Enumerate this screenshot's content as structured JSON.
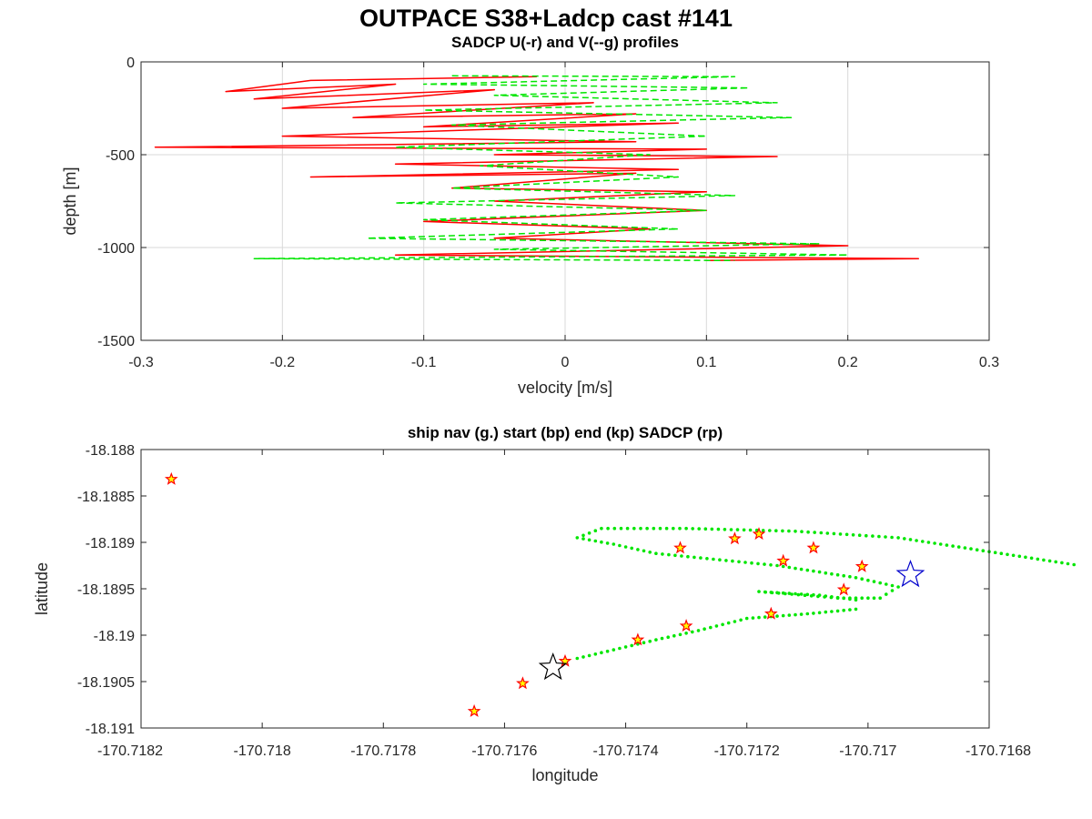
{
  "figure": {
    "title": "OUTPACE S38+Ladcp cast #141",
    "colors": {
      "u": "#ff0000",
      "v": "#00e600",
      "nav": "#00e600",
      "sadcp_fill": "#ffff00",
      "sadcp_edge": "#ff0000",
      "start": "#0000cc",
      "end": "#000000"
    }
  },
  "chart_data": [
    {
      "type": "line",
      "title": "SADCP U(-r) and V(--g) profiles",
      "xlabel": "velocity [m/s]",
      "ylabel": "depth [m]",
      "xlim": [
        -0.3,
        0.3
      ],
      "ylim": [
        -1500,
        0
      ],
      "xticks": [
        -0.3,
        -0.2,
        -0.1,
        0,
        0.1,
        0.2,
        0.3
      ],
      "xtick_labels": [
        "-0.3",
        "-0.2",
        "-0.1",
        "0",
        "0.1",
        "0.2",
        "0.3"
      ],
      "yticks": [
        -1500,
        -1000,
        -500,
        0
      ],
      "ytick_labels": [
        "-1500",
        "-1000",
        "-500",
        "0"
      ],
      "grid": true,
      "series": [
        {
          "key": "u",
          "style": "solid",
          "points": [
            [
              -0.02,
              -80
            ],
            [
              -0.18,
              -100
            ],
            [
              -0.24,
              -160
            ],
            [
              -0.12,
              -120
            ],
            [
              -0.22,
              -200
            ],
            [
              -0.05,
              -150
            ],
            [
              -0.2,
              -250
            ],
            [
              0.02,
              -220
            ],
            [
              -0.15,
              -300
            ],
            [
              0.05,
              -280
            ],
            [
              -0.1,
              -350
            ],
            [
              0.08,
              -330
            ],
            [
              -0.2,
              -400
            ],
            [
              0.05,
              -430
            ],
            [
              -0.29,
              -460
            ],
            [
              0.1,
              -470
            ],
            [
              -0.05,
              -500
            ],
            [
              0.15,
              -510
            ],
            [
              -0.12,
              -550
            ],
            [
              0.08,
              -580
            ],
            [
              -0.18,
              -620
            ],
            [
              0.05,
              -600
            ],
            [
              -0.08,
              -680
            ],
            [
              0.1,
              -700
            ],
            [
              -0.05,
              -750
            ],
            [
              0.1,
              -800
            ],
            [
              -0.1,
              -860
            ],
            [
              0.06,
              -900
            ],
            [
              -0.05,
              -950
            ],
            [
              0.2,
              -990
            ],
            [
              -0.12,
              -1040
            ],
            [
              0.25,
              -1060
            ],
            [
              0.1,
              -1070
            ]
          ]
        },
        {
          "key": "v",
          "style": "dashed",
          "points": [
            [
              -0.08,
              -75
            ],
            [
              0.12,
              -80
            ],
            [
              -0.1,
              -120
            ],
            [
              0.13,
              -140
            ],
            [
              -0.05,
              -180
            ],
            [
              0.15,
              -220
            ],
            [
              -0.1,
              -260
            ],
            [
              0.16,
              -300
            ],
            [
              -0.08,
              -340
            ],
            [
              0.1,
              -400
            ],
            [
              -0.12,
              -460
            ],
            [
              0.06,
              -500
            ],
            [
              -0.06,
              -560
            ],
            [
              0.08,
              -620
            ],
            [
              -0.08,
              -680
            ],
            [
              0.12,
              -720
            ],
            [
              -0.12,
              -760
            ],
            [
              0.1,
              -800
            ],
            [
              -0.1,
              -850
            ],
            [
              0.08,
              -900
            ],
            [
              -0.14,
              -950
            ],
            [
              0.18,
              -980
            ],
            [
              -0.05,
              -1010
            ],
            [
              0.2,
              -1040
            ],
            [
              -0.22,
              -1060
            ],
            [
              0.12,
              -1070
            ]
          ]
        }
      ]
    },
    {
      "type": "scatter",
      "title": "ship nav (g.) start (bp) end (kp) SADCP (rp)",
      "xlabel": "longitude",
      "ylabel": "latitude",
      "xlim": [
        -170.7182,
        -170.7168
      ],
      "ylim": [
        -18.191,
        -18.188
      ],
      "xticks": [
        -170.7182,
        -170.718,
        -170.7178,
        -170.7176,
        -170.7174,
        -170.7172,
        -170.717,
        -170.7168
      ],
      "xtick_labels": [
        "-170.7182",
        "-170.718",
        "-170.7178",
        "-170.7176",
        "-170.7174",
        "-170.7172",
        "-170.717",
        "-170.7168"
      ],
      "yticks": [
        -18.191,
        -18.1905,
        -18.19,
        -18.1895,
        -18.189,
        -18.1885,
        -18.188
      ],
      "ytick_labels": [
        "-18.191",
        "-18.1905",
        "-18.19",
        "-18.1895",
        "-18.189",
        "-18.1885",
        "-18.188"
      ],
      "grid": false,
      "nav_track": [
        [
          -170.71748,
          -18.19025
        ],
        [
          -170.71735,
          -18.19005
        ],
        [
          -170.71728,
          -18.18995
        ],
        [
          -170.7172,
          -18.18982
        ],
        [
          -170.7171,
          -18.18977
        ],
        [
          -170.71702,
          -18.18972
        ],
        [
          -170.71702,
          -18.18962
        ],
        [
          -170.71708,
          -18.18957
        ],
        [
          -170.71718,
          -18.18953
        ],
        [
          -170.71705,
          -18.1896
        ],
        [
          -170.71698,
          -18.1896
        ],
        [
          -170.71695,
          -18.18948
        ],
        [
          -170.71702,
          -18.18938
        ],
        [
          -170.71715,
          -18.18925
        ],
        [
          -170.71735,
          -18.18912
        ],
        [
          -170.71742,
          -18.18902
        ],
        [
          -170.71748,
          -18.18895
        ],
        [
          -170.71744,
          -18.18885
        ],
        [
          -170.7173,
          -18.18885
        ],
        [
          -170.71712,
          -18.18888
        ],
        [
          -170.71695,
          -18.18895
        ],
        [
          -170.71685,
          -18.18905
        ],
        [
          -170.71675,
          -18.18915
        ],
        [
          -170.71665,
          -18.18925
        ]
      ],
      "start": [
        -170.71693,
        -18.18935
      ],
      "end": [
        -170.71752,
        -18.19035
      ],
      "sadcp": [
        [
          -170.71815,
          -18.18832
        ],
        [
          -170.71765,
          -18.19082
        ],
        [
          -170.71757,
          -18.19052
        ],
        [
          -170.7175,
          -18.19028
        ],
        [
          -170.71738,
          -18.19005
        ],
        [
          -170.7173,
          -18.1899
        ],
        [
          -170.71716,
          -18.18977
        ],
        [
          -170.71704,
          -18.18951
        ],
        [
          -170.71709,
          -18.18906
        ],
        [
          -170.71731,
          -18.18906
        ],
        [
          -170.71722,
          -18.18896
        ],
        [
          -170.71718,
          -18.18891
        ],
        [
          -170.71714,
          -18.1892
        ],
        [
          -170.71701,
          -18.18926
        ]
      ]
    }
  ]
}
